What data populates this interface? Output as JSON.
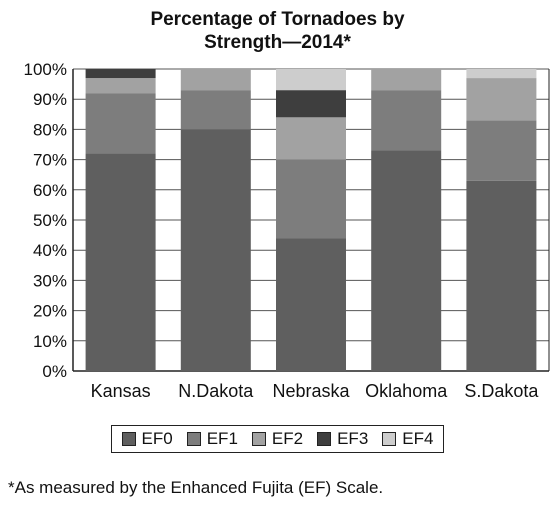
{
  "chart_data": {
    "type": "bar",
    "stacked": true,
    "title": "Percentage of Tornadoes by Strength—2014*",
    "title_lines": [
      "Percentage of Tornadoes by",
      "Strength—2014*"
    ],
    "categories": [
      "Kansas",
      "N.Dakota",
      "Nebraska",
      "Oklahoma",
      "S.Dakota"
    ],
    "series": [
      {
        "name": "EF0",
        "color": "#5f5f5f",
        "values": [
          72,
          80,
          44,
          73,
          63
        ]
      },
      {
        "name": "EF1",
        "color": "#7d7d7d",
        "values": [
          20,
          13,
          26,
          20,
          20
        ]
      },
      {
        "name": "EF2",
        "color": "#a2a2a2",
        "values": [
          5,
          7,
          14,
          7,
          14
        ]
      },
      {
        "name": "EF3",
        "color": "#3e3e3e",
        "values": [
          3,
          0,
          9,
          0,
          0
        ]
      },
      {
        "name": "EF4",
        "color": "#cdcdcd",
        "values": [
          0,
          0,
          7,
          0,
          3
        ]
      }
    ],
    "yticks": [
      "0%",
      "10%",
      "20%",
      "30%",
      "40%",
      "50%",
      "60%",
      "70%",
      "80%",
      "90%",
      "100%"
    ],
    "ylim": [
      0,
      100
    ],
    "grid": true,
    "legend_position": "bottom",
    "footnote": "*As measured by the Enhanced Fujita (EF) Scale."
  }
}
